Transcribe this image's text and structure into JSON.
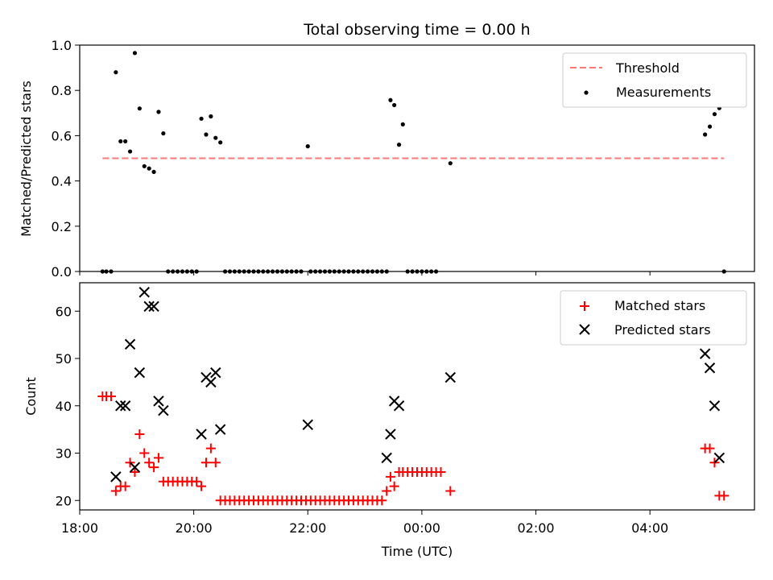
{
  "title": "Total observing time = 0.00 h",
  "chart_data": [
    {
      "type": "scatter",
      "ylabel": "Matched/Predicted stars",
      "xlim": [
        "18:00",
        "05:50"
      ],
      "ylim": [
        0,
        1.0
      ],
      "yticks": [
        0.0,
        0.2,
        0.4,
        0.6,
        0.8,
        1.0
      ],
      "yticks_labels": [
        "0.0",
        "0.2",
        "0.4",
        "0.6",
        "0.8",
        "1.0"
      ],
      "xticks": [
        "18:00",
        "20:00",
        "22:00",
        "00:00",
        "02:00",
        "04:00"
      ],
      "grid": false,
      "legend_position": "top-right",
      "series": [
        {
          "name": "Threshold",
          "kind": "dashed-line",
          "color": "#ff7777",
          "points": [
            [
              "18:24",
              0.5
            ],
            [
              "05:18",
              0.5
            ]
          ]
        },
        {
          "name": "Measurements",
          "kind": "dots",
          "color": "#000000",
          "points": [
            [
              "18:24",
              0.0
            ],
            [
              "18:28",
              0.0
            ],
            [
              "18:33",
              0.0
            ],
            [
              "18:38",
              0.88
            ],
            [
              "18:43",
              0.575
            ],
            [
              "18:48",
              0.575
            ],
            [
              "18:53",
              0.53
            ],
            [
              "18:58",
              0.965
            ],
            [
              "19:03",
              0.72
            ],
            [
              "19:08",
              0.465
            ],
            [
              "19:13",
              0.455
            ],
            [
              "19:18",
              0.44
            ],
            [
              "19:23",
              0.705
            ],
            [
              "19:28",
              0.61
            ],
            [
              "19:33",
              0.0
            ],
            [
              "19:38",
              0.0
            ],
            [
              "19:43",
              0.0
            ],
            [
              "19:48",
              0.0
            ],
            [
              "19:53",
              0.0
            ],
            [
              "19:58",
              0.0
            ],
            [
              "20:03",
              0.0
            ],
            [
              "20:08",
              0.675
            ],
            [
              "20:13",
              0.605
            ],
            [
              "20:18",
              0.685
            ],
            [
              "20:23",
              0.59
            ],
            [
              "20:28",
              0.57
            ],
            [
              "20:33",
              0.0
            ],
            [
              "20:38",
              0.0
            ],
            [
              "20:43",
              0.0
            ],
            [
              "20:48",
              0.0
            ],
            [
              "20:53",
              0.0
            ],
            [
              "20:58",
              0.0
            ],
            [
              "21:03",
              0.0
            ],
            [
              "21:08",
              0.0
            ],
            [
              "21:13",
              0.0
            ],
            [
              "21:18",
              0.0
            ],
            [
              "21:23",
              0.0
            ],
            [
              "21:28",
              0.0
            ],
            [
              "21:33",
              0.0
            ],
            [
              "21:38",
              0.0
            ],
            [
              "21:43",
              0.0
            ],
            [
              "21:48",
              0.0
            ],
            [
              "21:53",
              0.0
            ],
            [
              "22:00",
              0.553
            ],
            [
              "22:03",
              0.0
            ],
            [
              "22:08",
              0.0
            ],
            [
              "22:13",
              0.0
            ],
            [
              "22:18",
              0.0
            ],
            [
              "22:23",
              0.0
            ],
            [
              "22:28",
              0.0
            ],
            [
              "22:33",
              0.0
            ],
            [
              "22:38",
              0.0
            ],
            [
              "22:43",
              0.0
            ],
            [
              "22:48",
              0.0
            ],
            [
              "22:53",
              0.0
            ],
            [
              "22:58",
              0.0
            ],
            [
              "23:03",
              0.0
            ],
            [
              "23:08",
              0.0
            ],
            [
              "23:13",
              0.0
            ],
            [
              "23:18",
              0.0
            ],
            [
              "23:23",
              0.0
            ],
            [
              "23:27",
              0.757
            ],
            [
              "23:31",
              0.735
            ],
            [
              "23:36",
              0.56
            ],
            [
              "23:40",
              0.65
            ],
            [
              "23:45",
              0.0
            ],
            [
              "23:50",
              0.0
            ],
            [
              "23:55",
              0.0
            ],
            [
              "00:00",
              0.0
            ],
            [
              "00:05",
              0.0
            ],
            [
              "00:10",
              0.0
            ],
            [
              "00:15",
              0.0
            ],
            [
              "00:30",
              0.478
            ],
            [
              "04:58",
              0.605
            ],
            [
              "05:03",
              0.64
            ],
            [
              "05:08",
              0.695
            ],
            [
              "05:13",
              0.722
            ],
            [
              "05:18",
              0.0
            ]
          ]
        }
      ]
    },
    {
      "type": "scatter",
      "xlabel": "Time (UTC)",
      "ylabel": "Count",
      "xlim": [
        "18:00",
        "05:50"
      ],
      "ylim": [
        18,
        66
      ],
      "yticks": [
        20,
        30,
        40,
        50,
        60
      ],
      "xticks": [
        "18:00",
        "20:00",
        "22:00",
        "00:00",
        "02:00",
        "04:00"
      ],
      "grid": false,
      "legend_position": "top-right",
      "series": [
        {
          "name": "Matched stars",
          "marker": "plus",
          "color": "#ff0000",
          "points": [
            [
              "18:24",
              42
            ],
            [
              "18:28",
              42
            ],
            [
              "18:33",
              42
            ],
            [
              "18:38",
              22
            ],
            [
              "18:43",
              23
            ],
            [
              "18:48",
              23
            ],
            [
              "18:53",
              28
            ],
            [
              "18:58",
              26
            ],
            [
              "19:03",
              34
            ],
            [
              "19:08",
              30
            ],
            [
              "19:13",
              28
            ],
            [
              "19:18",
              27
            ],
            [
              "19:23",
              29
            ],
            [
              "19:28",
              24
            ],
            [
              "19:33",
              24
            ],
            [
              "19:38",
              24
            ],
            [
              "19:43",
              24
            ],
            [
              "19:48",
              24
            ],
            [
              "19:53",
              24
            ],
            [
              "19:58",
              24
            ],
            [
              "20:03",
              24
            ],
            [
              "20:08",
              23
            ],
            [
              "20:13",
              28
            ],
            [
              "20:18",
              31
            ],
            [
              "20:23",
              28
            ],
            [
              "20:28",
              20
            ],
            [
              "20:33",
              20
            ],
            [
              "20:38",
              20
            ],
            [
              "20:43",
              20
            ],
            [
              "20:48",
              20
            ],
            [
              "20:53",
              20
            ],
            [
              "20:58",
              20
            ],
            [
              "21:03",
              20
            ],
            [
              "21:08",
              20
            ],
            [
              "21:13",
              20
            ],
            [
              "21:18",
              20
            ],
            [
              "21:23",
              20
            ],
            [
              "21:28",
              20
            ],
            [
              "21:33",
              20
            ],
            [
              "21:38",
              20
            ],
            [
              "21:43",
              20
            ],
            [
              "21:48",
              20
            ],
            [
              "21:53",
              20
            ],
            [
              "21:58",
              20
            ],
            [
              "22:03",
              20
            ],
            [
              "22:08",
              20
            ],
            [
              "22:13",
              20
            ],
            [
              "22:18",
              20
            ],
            [
              "22:23",
              20
            ],
            [
              "22:28",
              20
            ],
            [
              "22:33",
              20
            ],
            [
              "22:38",
              20
            ],
            [
              "22:43",
              20
            ],
            [
              "22:48",
              20
            ],
            [
              "22:53",
              20
            ],
            [
              "22:58",
              20
            ],
            [
              "23:03",
              20
            ],
            [
              "23:08",
              20
            ],
            [
              "23:13",
              20
            ],
            [
              "23:18",
              20
            ],
            [
              "23:23",
              22
            ],
            [
              "23:27",
              25
            ],
            [
              "23:31",
              23
            ],
            [
              "23:36",
              26
            ],
            [
              "23:40",
              26
            ],
            [
              "23:45",
              26
            ],
            [
              "23:50",
              26
            ],
            [
              "23:55",
              26
            ],
            [
              "00:00",
              26
            ],
            [
              "00:05",
              26
            ],
            [
              "00:10",
              26
            ],
            [
              "00:15",
              26
            ],
            [
              "00:20",
              26
            ],
            [
              "00:30",
              22
            ],
            [
              "04:58",
              31
            ],
            [
              "05:03",
              31
            ],
            [
              "05:08",
              28
            ],
            [
              "05:13",
              21
            ],
            [
              "05:18",
              21
            ]
          ]
        },
        {
          "name": "Predicted stars",
          "marker": "x",
          "color": "#000000",
          "points": [
            [
              "18:38",
              25
            ],
            [
              "18:43",
              40
            ],
            [
              "18:48",
              40
            ],
            [
              "18:53",
              53
            ],
            [
              "18:58",
              27
            ],
            [
              "19:03",
              47
            ],
            [
              "19:08",
              64
            ],
            [
              "19:13",
              61
            ],
            [
              "19:18",
              61
            ],
            [
              "19:23",
              41
            ],
            [
              "19:28",
              39
            ],
            [
              "20:08",
              34
            ],
            [
              "20:13",
              46
            ],
            [
              "20:18",
              45
            ],
            [
              "20:23",
              47
            ],
            [
              "20:28",
              35
            ],
            [
              "22:00",
              36
            ],
            [
              "23:23",
              29
            ],
            [
              "23:27",
              34
            ],
            [
              "23:31",
              41
            ],
            [
              "23:36",
              40
            ],
            [
              "00:30",
              46
            ],
            [
              "04:58",
              51
            ],
            [
              "05:03",
              48
            ],
            [
              "05:08",
              40
            ],
            [
              "05:13",
              29
            ]
          ]
        }
      ]
    }
  ]
}
